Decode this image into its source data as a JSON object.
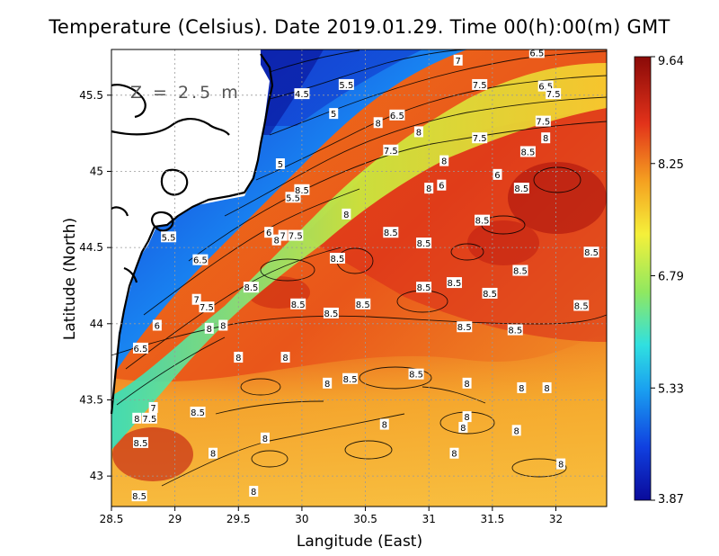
{
  "title": "Temperature (Celsius). Date 2019.01.29. Time 00(h):00(m) GMT",
  "depth_label": "Z = 2.5 m",
  "colors": {
    "cold": "#0a1aa0",
    "mid": "#f5f03a",
    "warm": "#e2321a",
    "hot": "#8a0a08",
    "land": "#ffffff",
    "coast": "#000000",
    "grid": "#9a9a9a"
  },
  "map": {
    "lon_range": [
      28.5,
      32.4
    ],
    "lat_range": [
      42.8,
      45.8
    ],
    "xlabel": "Langitude (East)",
    "ylabel": "Latitude (North)",
    "x_ticks": [
      {
        "value": 28.5,
        "label": "28.5"
      },
      {
        "value": 29,
        "label": "29"
      },
      {
        "value": 29.5,
        "label": "29.5"
      },
      {
        "value": 30,
        "label": "30"
      },
      {
        "value": 30.5,
        "label": "30.5"
      },
      {
        "value": 31,
        "label": "31"
      },
      {
        "value": 31.5,
        "label": "31.5"
      },
      {
        "value": 32,
        "label": "32"
      }
    ],
    "y_ticks": [
      {
        "value": 43,
        "label": "43"
      },
      {
        "value": 43.5,
        "label": "43.5"
      },
      {
        "value": 44,
        "label": "44"
      },
      {
        "value": 44.5,
        "label": "44.5"
      },
      {
        "value": 45,
        "label": "45"
      },
      {
        "value": 45.5,
        "label": "45.5"
      }
    ],
    "grid": true
  },
  "colorbar": {
    "min": 3.87,
    "max": 9.64,
    "labels": [
      {
        "value": 9.64,
        "label": "9.64"
      },
      {
        "value": 8.25,
        "label": "8.25"
      },
      {
        "value": 6.79,
        "label": "6.79"
      },
      {
        "value": 5.33,
        "label": "5.33"
      },
      {
        "value": 3.87,
        "label": "3.87"
      }
    ]
  },
  "contour_labels": [
    {
      "lon": 31.23,
      "lat": 45.73,
      "text": "7"
    },
    {
      "lon": 31.85,
      "lat": 45.78,
      "text": "6.5"
    },
    {
      "lon": 30.0,
      "lat": 45.51,
      "text": "4.5"
    },
    {
      "lon": 30.35,
      "lat": 45.57,
      "text": "5.5"
    },
    {
      "lon": 31.4,
      "lat": 45.57,
      "text": "7.5"
    },
    {
      "lon": 31.92,
      "lat": 45.56,
      "text": "6.5"
    },
    {
      "lon": 31.98,
      "lat": 45.51,
      "text": "7.5"
    },
    {
      "lon": 30.25,
      "lat": 45.38,
      "text": "5"
    },
    {
      "lon": 30.6,
      "lat": 45.32,
      "text": "8"
    },
    {
      "lon": 30.75,
      "lat": 45.37,
      "text": "6.5"
    },
    {
      "lon": 30.92,
      "lat": 45.26,
      "text": "8"
    },
    {
      "lon": 31.9,
      "lat": 45.33,
      "text": "7.5"
    },
    {
      "lon": 31.4,
      "lat": 45.22,
      "text": "7.5"
    },
    {
      "lon": 31.92,
      "lat": 45.22,
      "text": "8"
    },
    {
      "lon": 30.7,
      "lat": 45.14,
      "text": "7.5"
    },
    {
      "lon": 31.12,
      "lat": 45.07,
      "text": "8"
    },
    {
      "lon": 31.78,
      "lat": 45.13,
      "text": "8.5"
    },
    {
      "lon": 29.83,
      "lat": 45.05,
      "text": "5"
    },
    {
      "lon": 31.54,
      "lat": 44.98,
      "text": "6"
    },
    {
      "lon": 31.0,
      "lat": 44.89,
      "text": "8"
    },
    {
      "lon": 31.1,
      "lat": 44.91,
      "text": "6"
    },
    {
      "lon": 31.73,
      "lat": 44.89,
      "text": "8.5"
    },
    {
      "lon": 29.93,
      "lat": 44.83,
      "text": "5.5"
    },
    {
      "lon": 30.0,
      "lat": 44.88,
      "text": "8.5"
    },
    {
      "lon": 30.35,
      "lat": 44.72,
      "text": "8"
    },
    {
      "lon": 31.42,
      "lat": 44.68,
      "text": "8.5"
    },
    {
      "lon": 29.74,
      "lat": 44.6,
      "text": "6"
    },
    {
      "lon": 29.85,
      "lat": 44.58,
      "text": "7"
    },
    {
      "lon": 29.95,
      "lat": 44.58,
      "text": "7.5"
    },
    {
      "lon": 29.8,
      "lat": 44.55,
      "text": "8"
    },
    {
      "lon": 30.7,
      "lat": 44.6,
      "text": "8.5"
    },
    {
      "lon": 30.96,
      "lat": 44.53,
      "text": "8.5"
    },
    {
      "lon": 28.95,
      "lat": 44.57,
      "text": "5.5"
    },
    {
      "lon": 32.28,
      "lat": 44.47,
      "text": "8.5"
    },
    {
      "lon": 29.2,
      "lat": 44.42,
      "text": "6.5"
    },
    {
      "lon": 30.28,
      "lat": 44.43,
      "text": "8.5"
    },
    {
      "lon": 31.72,
      "lat": 44.35,
      "text": "8.5"
    },
    {
      "lon": 29.6,
      "lat": 44.24,
      "text": "8.5"
    },
    {
      "lon": 30.96,
      "lat": 44.24,
      "text": "8.5"
    },
    {
      "lon": 31.2,
      "lat": 44.27,
      "text": "8.5"
    },
    {
      "lon": 31.48,
      "lat": 44.2,
      "text": "8.5"
    },
    {
      "lon": 29.17,
      "lat": 44.16,
      "text": "7"
    },
    {
      "lon": 29.25,
      "lat": 44.11,
      "text": "7.5"
    },
    {
      "lon": 29.97,
      "lat": 44.13,
      "text": "8.5"
    },
    {
      "lon": 30.23,
      "lat": 44.07,
      "text": "8.5"
    },
    {
      "lon": 30.48,
      "lat": 44.13,
      "text": "8.5"
    },
    {
      "lon": 32.2,
      "lat": 44.12,
      "text": "8.5"
    },
    {
      "lon": 28.86,
      "lat": 43.99,
      "text": "6"
    },
    {
      "lon": 29.27,
      "lat": 43.97,
      "text": "8"
    },
    {
      "lon": 29.38,
      "lat": 43.99,
      "text": "8"
    },
    {
      "lon": 31.28,
      "lat": 43.98,
      "text": "8.5"
    },
    {
      "lon": 31.68,
      "lat": 43.96,
      "text": "8.5"
    },
    {
      "lon": 28.73,
      "lat": 43.84,
      "text": "6.5"
    },
    {
      "lon": 29.5,
      "lat": 43.78,
      "text": "8"
    },
    {
      "lon": 29.87,
      "lat": 43.78,
      "text": "8"
    },
    {
      "lon": 30.9,
      "lat": 43.67,
      "text": "8.5"
    },
    {
      "lon": 30.38,
      "lat": 43.64,
      "text": "8.5"
    },
    {
      "lon": 30.2,
      "lat": 43.61,
      "text": "8"
    },
    {
      "lon": 31.3,
      "lat": 43.61,
      "text": "8"
    },
    {
      "lon": 31.73,
      "lat": 43.58,
      "text": "8"
    },
    {
      "lon": 31.93,
      "lat": 43.58,
      "text": "8"
    },
    {
      "lon": 28.83,
      "lat": 43.45,
      "text": "7"
    },
    {
      "lon": 28.8,
      "lat": 43.38,
      "text": "7.5"
    },
    {
      "lon": 28.7,
      "lat": 43.38,
      "text": "8"
    },
    {
      "lon": 29.18,
      "lat": 43.42,
      "text": "8.5"
    },
    {
      "lon": 31.3,
      "lat": 43.39,
      "text": "8"
    },
    {
      "lon": 30.65,
      "lat": 43.34,
      "text": "8"
    },
    {
      "lon": 31.27,
      "lat": 43.32,
      "text": "8"
    },
    {
      "lon": 31.69,
      "lat": 43.3,
      "text": "8"
    },
    {
      "lon": 28.73,
      "lat": 43.22,
      "text": "8.5"
    },
    {
      "lon": 29.71,
      "lat": 43.25,
      "text": "8"
    },
    {
      "lon": 29.3,
      "lat": 43.15,
      "text": "8"
    },
    {
      "lon": 31.2,
      "lat": 43.15,
      "text": "8"
    },
    {
      "lon": 32.04,
      "lat": 43.08,
      "text": "8"
    },
    {
      "lon": 29.62,
      "lat": 42.9,
      "text": "8"
    },
    {
      "lon": 28.72,
      "lat": 42.87,
      "text": "8.5"
    }
  ]
}
